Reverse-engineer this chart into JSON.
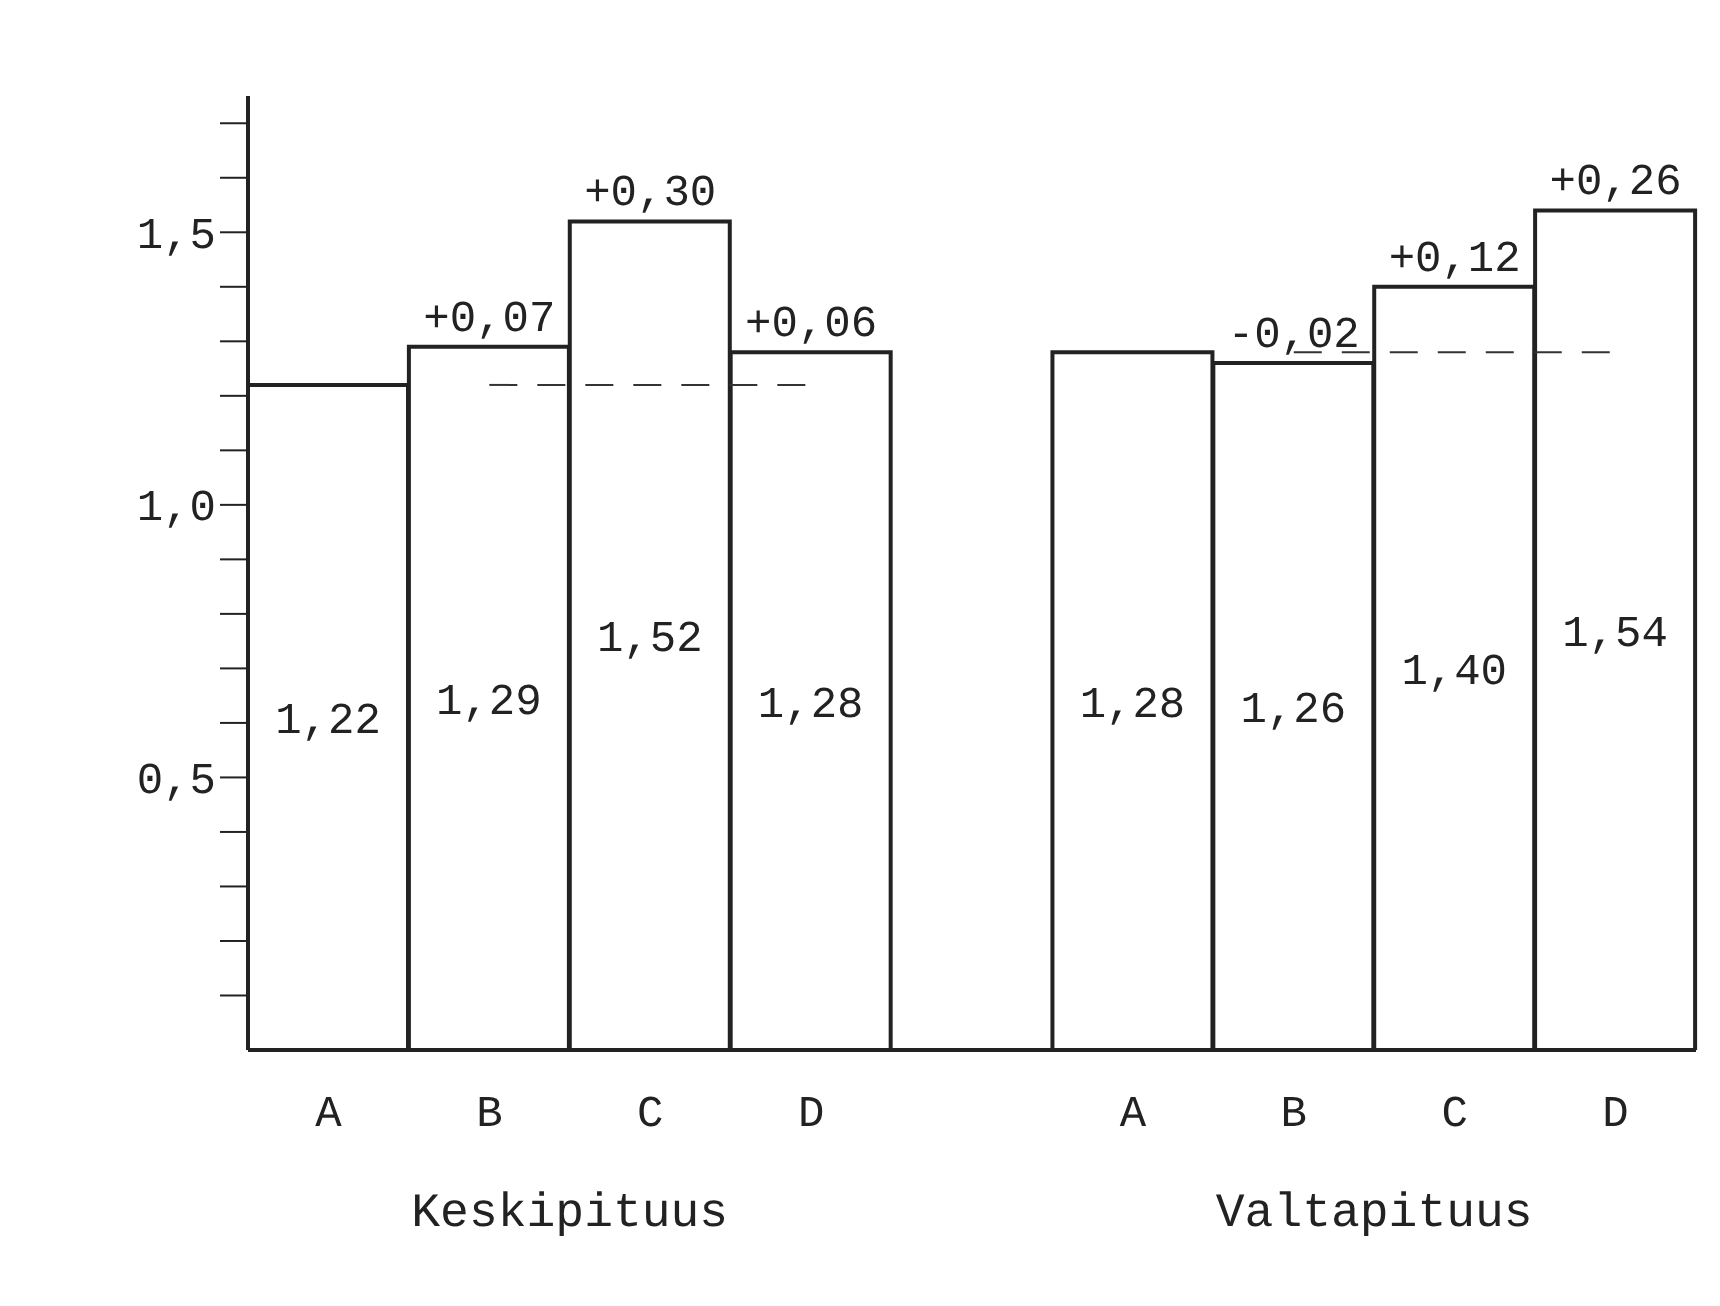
{
  "chart_data": {
    "type": "bar",
    "categories": [
      "A",
      "B",
      "C",
      "D",
      null,
      "A",
      "B",
      "C",
      "D"
    ],
    "values": [
      1.22,
      1.29,
      1.52,
      1.28,
      null,
      1.28,
      1.26,
      1.4,
      1.54
    ],
    "value_labels": [
      "1,22",
      "1,29",
      "1,52",
      "1,28",
      null,
      "1,28",
      "1,26",
      "1,40",
      "1,54"
    ],
    "color": "#ffffff",
    "ylim": [
      0,
      1.75
    ],
    "yticks": [
      {
        "value": 0.1,
        "label": null
      },
      {
        "value": 0.2,
        "label": null
      },
      {
        "value": 0.3,
        "label": null
      },
      {
        "value": 0.4,
        "label": null
      },
      {
        "value": 0.5,
        "label": "0,5"
      },
      {
        "value": 0.6,
        "label": null
      },
      {
        "value": 0.7,
        "label": null
      },
      {
        "value": 0.8,
        "label": null
      },
      {
        "value": 0.9,
        "label": null
      },
      {
        "value": 1.0,
        "label": "1,0"
      },
      {
        "value": 1.1,
        "label": null
      },
      {
        "value": 1.2,
        "label": null
      },
      {
        "value": 1.3,
        "label": null
      },
      {
        "value": 1.4,
        "label": null
      },
      {
        "value": 1.5,
        "label": "1,5"
      },
      {
        "value": 1.6,
        "label": null
      },
      {
        "value": 1.7,
        "label": null
      }
    ],
    "ref_lines": [
      {
        "axis": "y",
        "value": 1.22,
        "line_style": "dashed"
      },
      {
        "axis": "y",
        "value": 1.28,
        "line_style": "dashed"
      }
    ],
    "annotations": [
      "Keskipituus",
      "Valtapituus",
      "+0,07",
      "+0,30",
      "+0,06",
      "-0,02",
      "+0,12",
      "+0,26"
    ],
    "grid": false,
    "legend": false
  }
}
